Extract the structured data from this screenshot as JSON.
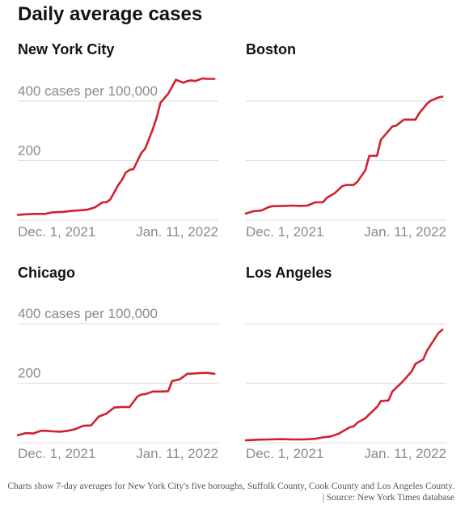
{
  "title": "Daily average cases",
  "footnote": "Charts show 7-day averages for New York City's five boroughs, Suffolk County, Cook County and Los Angeles County. | Source: New York Times database",
  "colors": {
    "line": "#d0212e",
    "grid": "#dcdcdc",
    "label": "#8a8a8a",
    "title": "#121212"
  },
  "chart_data": [
    {
      "type": "line",
      "title": "New York City",
      "ylim": [
        0,
        460
      ],
      "yticks": [
        {
          "value": 200,
          "label": "200"
        },
        {
          "value": 400,
          "label": "400 cases per 100,000"
        }
      ],
      "xticks": [
        {
          "x": 0,
          "label": "Dec. 1, 2021"
        },
        {
          "x": 41,
          "label": "Jan. 11, 2022"
        }
      ],
      "xlim": [
        -7,
        45
      ],
      "grid": true,
      "series": [
        {
          "x": [
            -7,
            -3,
            0,
            2,
            5,
            7,
            9,
            11,
            13,
            15,
            16,
            17,
            18,
            19,
            20,
            21,
            22,
            23,
            25,
            26,
            28,
            29,
            30,
            32,
            34,
            36,
            37,
            38,
            39,
            41,
            42,
            44
          ],
          "values": [
            18,
            21,
            21,
            26,
            28,
            31,
            33,
            35,
            43,
            60,
            60,
            70,
            93,
            117,
            135,
            160,
            169,
            172,
            225,
            240,
            305,
            345,
            395,
            425,
            472,
            462,
            468,
            470,
            468,
            477,
            475,
            475
          ]
        }
      ]
    },
    {
      "type": "line",
      "title": "Boston",
      "ylim": [
        0,
        460
      ],
      "yticks": [
        {
          "value": 200,
          "label": ""
        },
        {
          "value": 400,
          "label": ""
        }
      ],
      "xticks": [
        {
          "x": 0,
          "label": "Dec. 1, 2021"
        },
        {
          "x": 41,
          "label": "Jan. 11, 2022"
        }
      ],
      "xlim": [
        -7,
        45
      ],
      "grid": true,
      "series": [
        {
          "x": [
            -7,
            -5,
            -3,
            -1,
            0,
            3,
            5,
            7,
            9,
            11,
            13,
            14,
            16,
            18,
            19,
            21,
            22,
            24,
            25,
            27,
            28,
            29,
            31,
            32,
            34,
            36,
            37,
            38,
            40,
            41,
            43,
            44
          ],
          "values": [
            22,
            30,
            32,
            44,
            47,
            48,
            49,
            48,
            49,
            60,
            60,
            75,
            90,
            114,
            118,
            118,
            130,
            168,
            216,
            216,
            270,
            285,
            315,
            318,
            338,
            338,
            338,
            360,
            392,
            402,
            413,
            415
          ]
        }
      ]
    },
    {
      "type": "line",
      "title": "Chicago",
      "ylim": [
        0,
        460
      ],
      "yticks": [
        {
          "value": 200,
          "label": "200"
        },
        {
          "value": 400,
          "label": "400 cases per 100,000"
        }
      ],
      "xticks": [
        {
          "x": 0,
          "label": "Dec. 1, 2021"
        },
        {
          "x": 41,
          "label": "Jan. 11, 2022"
        }
      ],
      "xlim": [
        -7,
        45
      ],
      "grid": true,
      "series": [
        {
          "x": [
            -7,
            -5,
            -3,
            -1,
            0,
            2,
            4,
            6,
            8,
            10,
            12,
            14,
            16,
            18,
            20,
            22,
            24,
            25,
            26,
            28,
            30,
            32,
            33,
            35,
            37,
            38,
            40,
            42,
            44
          ],
          "values": [
            25,
            32,
            31,
            40,
            40,
            38,
            37,
            40,
            46,
            57,
            58,
            88,
            98,
            118,
            120,
            120,
            155,
            162,
            163,
            172,
            172,
            173,
            207,
            213,
            232,
            232,
            234,
            235,
            232
          ]
        }
      ]
    },
    {
      "type": "line",
      "title": "Los Angeles",
      "ylim": [
        0,
        460
      ],
      "yticks": [
        {
          "value": 200,
          "label": ""
        },
        {
          "value": 400,
          "label": ""
        }
      ],
      "xticks": [
        {
          "x": 0,
          "label": "Dec. 1, 2021"
        },
        {
          "x": 41,
          "label": "Jan. 11, 2022"
        }
      ],
      "xlim": [
        -7,
        45
      ],
      "grid": true,
      "series": [
        {
          "x": [
            -7,
            -4,
            -1,
            2,
            5,
            8,
            11,
            13,
            15,
            17,
            18,
            20,
            21,
            22,
            24,
            25,
            27,
            28,
            30,
            31,
            33,
            34,
            36,
            37,
            39,
            40,
            42,
            43,
            44
          ],
          "values": [
            8,
            10,
            11,
            12,
            11,
            11,
            13,
            18,
            21,
            30,
            37,
            52,
            55,
            68,
            82,
            95,
            120,
            140,
            142,
            172,
            197,
            210,
            240,
            265,
            280,
            310,
            350,
            370,
            380
          ]
        }
      ]
    }
  ]
}
